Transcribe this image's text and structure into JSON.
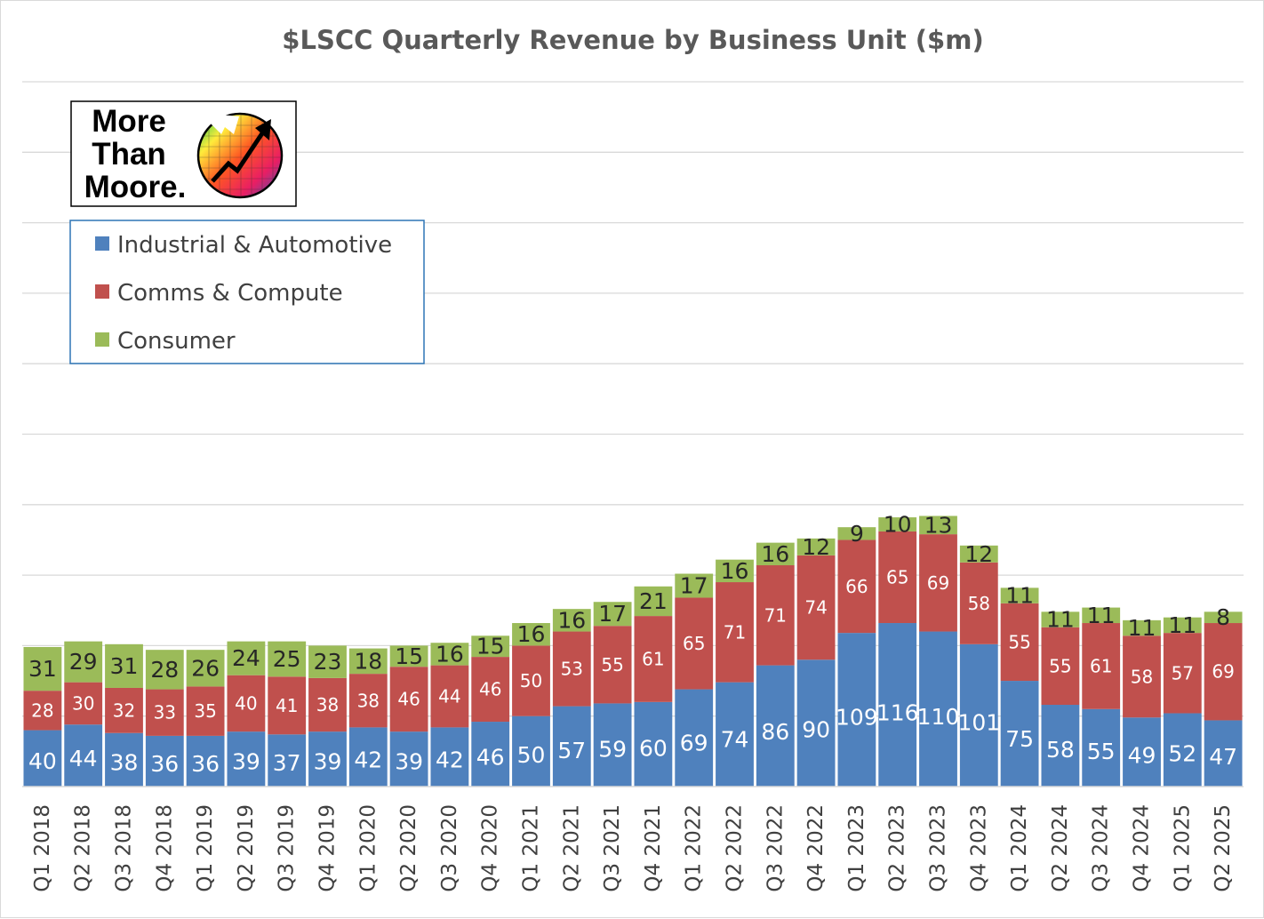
{
  "chart_data": {
    "type": "bar",
    "stacked": true,
    "title": "$LSCC Quarterly Revenue by Business Unit ($m)",
    "xlabel": "",
    "ylabel": "",
    "ylim": [
      0,
      500
    ],
    "grid": true,
    "legend_position": "top-left",
    "categories": [
      "Q1 2018",
      "Q2 2018",
      "Q3 2018",
      "Q4 2018",
      "Q1 2019",
      "Q2 2019",
      "Q3 2019",
      "Q4 2019",
      "Q1 2020",
      "Q2 2020",
      "Q3 2020",
      "Q4 2020",
      "Q1 2021",
      "Q2 2021",
      "Q3 2021",
      "Q4 2021",
      "Q1 2022",
      "Q2 2022",
      "Q3 2022",
      "Q4 2022",
      "Q1 2023",
      "Q2 2023",
      "Q3 2023",
      "Q4 2023",
      "Q1 2024",
      "Q2 2024",
      "Q3 2024",
      "Q4 2024",
      "Q1 2025",
      "Q2 2025"
    ],
    "series": [
      {
        "name": "Industrial & Automotive",
        "color": "#4f81bd",
        "label_color": "#ffffff",
        "values": [
          40,
          44,
          38,
          36,
          36,
          39,
          37,
          39,
          42,
          39,
          42,
          46,
          50,
          57,
          59,
          60,
          69,
          74,
          86,
          90,
          109,
          116,
          110,
          101,
          75,
          58,
          55,
          49,
          52,
          47
        ]
      },
      {
        "name": "Comms & Compute",
        "color": "#c0504d",
        "label_color": "#ffffff",
        "values": [
          28,
          30,
          32,
          33,
          35,
          40,
          41,
          38,
          38,
          46,
          44,
          46,
          50,
          53,
          55,
          61,
          65,
          71,
          71,
          74,
          66,
          65,
          69,
          58,
          55,
          55,
          61,
          58,
          57,
          69
        ]
      },
      {
        "name": "Consumer",
        "color": "#9bbb59",
        "label_color": "#262626",
        "values": [
          31,
          29,
          31,
          28,
          26,
          24,
          25,
          23,
          18,
          15,
          16,
          15,
          16,
          16,
          17,
          21,
          17,
          16,
          16,
          12,
          9,
          10,
          13,
          12,
          11,
          11,
          11,
          11,
          11,
          8
        ]
      }
    ]
  },
  "logo": {
    "line1": "More",
    "line2": "Than",
    "line3": "Moore."
  }
}
